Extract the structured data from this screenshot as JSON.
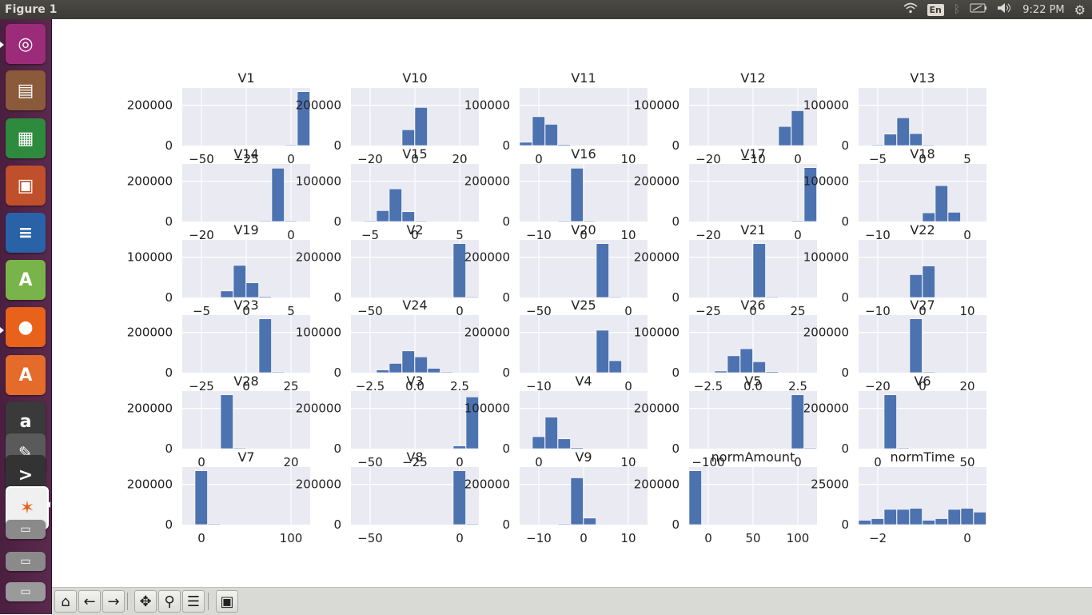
{
  "window": {
    "title": "Figure 1"
  },
  "tray": {
    "lang": "En",
    "time": "9:22 PM"
  },
  "launcher": {
    "items": [
      {
        "name": "ubuntu-dash",
        "color": "#9c2c7a",
        "glyph": "◎"
      },
      {
        "name": "files",
        "color": "#8a5a3a",
        "glyph": "▤"
      },
      {
        "name": "calc",
        "color": "#2e8b3e",
        "glyph": "▦"
      },
      {
        "name": "impress",
        "color": "#c0502b",
        "glyph": "▣"
      },
      {
        "name": "writer",
        "color": "#2a62a8",
        "glyph": "≡"
      },
      {
        "name": "android-studio",
        "color": "#79b44a",
        "glyph": "A"
      },
      {
        "name": "firefox",
        "color": "#e8621b",
        "glyph": "●"
      },
      {
        "name": "software-center",
        "color": "#e46b2a",
        "glyph": "A"
      },
      {
        "name": "amazon",
        "color": "#3a3a3a",
        "glyph": "a"
      },
      {
        "name": "text-editor",
        "color": "#5a5a5a",
        "glyph": "✎"
      },
      {
        "name": "terminal",
        "color": "#333333",
        "glyph": ">"
      },
      {
        "name": "matplotlib-figure",
        "color": "#f0f0f0",
        "glyph": "✶"
      },
      {
        "name": "workspace-1",
        "color": "#8a8a8a",
        "glyph": "▭"
      },
      {
        "name": "workspace-2",
        "color": "#8a8a8a",
        "glyph": "▭"
      },
      {
        "name": "trash",
        "color": "#9a9a9a",
        "glyph": "▭"
      }
    ]
  },
  "toolbar": {
    "buttons": [
      {
        "name": "home",
        "glyph": "⌂"
      },
      {
        "name": "back",
        "glyph": "←"
      },
      {
        "name": "forward",
        "glyph": "→"
      },
      {
        "name": "pan",
        "glyph": "✥"
      },
      {
        "name": "zoom",
        "glyph": "⚲"
      },
      {
        "name": "configure-subplots",
        "glyph": "☰"
      },
      {
        "name": "save",
        "glyph": "▣"
      }
    ]
  },
  "colors": {
    "bar": "#4c72b0",
    "axes_bg": "#eaeaf2",
    "grid": "#ffffff",
    "text": "#222222"
  },
  "chart_data": [
    {
      "type": "bar",
      "title": "V1",
      "yticks": [
        "0",
        "200000"
      ],
      "xticks": [
        "−50",
        "−25",
        "0"
      ],
      "values": [
        0,
        0,
        0,
        0,
        0,
        0,
        0,
        0,
        0.01,
        0.99
      ]
    },
    {
      "type": "bar",
      "title": "V10",
      "yticks": [
        "0",
        "200000"
      ],
      "xticks": [
        "−20",
        "0",
        "20"
      ],
      "values": [
        0,
        0,
        0,
        0,
        0.29,
        0.7,
        0,
        0,
        0,
        0
      ]
    },
    {
      "type": "bar",
      "title": "V11",
      "yticks": [
        "0",
        "100000"
      ],
      "xticks": [
        "0",
        "10"
      ],
      "values": [
        0.06,
        0.53,
        0.39,
        0.02,
        0,
        0,
        0,
        0,
        0,
        0
      ]
    },
    {
      "type": "bar",
      "title": "V12",
      "yticks": [
        "0",
        "100000"
      ],
      "xticks": [
        "−20",
        "−10",
        "0"
      ],
      "values": [
        0,
        0,
        0,
        0,
        0,
        0,
        0,
        0.35,
        0.64,
        0
      ]
    },
    {
      "type": "bar",
      "title": "V13",
      "yticks": [
        "0",
        "100000"
      ],
      "xticks": [
        "−5",
        "0",
        "5"
      ],
      "values": [
        0,
        0.01,
        0.21,
        0.51,
        0.22,
        0.01,
        0,
        0,
        0,
        0
      ]
    },
    {
      "type": "bar",
      "title": "V14",
      "yticks": [
        "0",
        "200000"
      ],
      "xticks": [
        "−20",
        "0"
      ],
      "values": [
        0,
        0,
        0,
        0,
        0,
        0,
        0.01,
        0.98,
        0.01,
        0
      ]
    },
    {
      "type": "bar",
      "title": "V15",
      "yticks": [
        "0",
        "100000"
      ],
      "xticks": [
        "−5",
        "0",
        "5"
      ],
      "values": [
        0,
        0.01,
        0.2,
        0.6,
        0.18,
        0.01,
        0,
        0,
        0,
        0
      ]
    },
    {
      "type": "bar",
      "title": "V16",
      "yticks": [
        "0",
        "200000"
      ],
      "xticks": [
        "−10",
        "0",
        "10"
      ],
      "values": [
        0,
        0,
        0,
        0.01,
        0.98,
        0.01,
        0,
        0,
        0,
        0
      ]
    },
    {
      "type": "bar",
      "title": "V17",
      "yticks": [
        "0",
        "200000"
      ],
      "xticks": [
        "−20",
        "0"
      ],
      "values": [
        0,
        0,
        0,
        0,
        0,
        0,
        0,
        0,
        0.01,
        0.99
      ]
    },
    {
      "type": "bar",
      "title": "V18",
      "yticks": [
        "0",
        "100000"
      ],
      "xticks": [
        "−10",
        "0"
      ],
      "values": [
        0,
        0,
        0,
        0,
        0,
        0.16,
        0.66,
        0.17,
        0,
        0
      ]
    },
    {
      "type": "bar",
      "title": "V19",
      "yticks": [
        "0",
        "100000"
      ],
      "xticks": [
        "−5",
        "0",
        "5"
      ],
      "values": [
        0,
        0,
        0,
        0.12,
        0.59,
        0.27,
        0.02,
        0,
        0,
        0
      ]
    },
    {
      "type": "bar",
      "title": "V2",
      "yticks": [
        "0",
        "200000"
      ],
      "xticks": [
        "−50",
        "0"
      ],
      "values": [
        0,
        0,
        0,
        0,
        0,
        0,
        0,
        0,
        0.99,
        0.01
      ]
    },
    {
      "type": "bar",
      "title": "V20",
      "yticks": [
        "0",
        "200000"
      ],
      "xticks": [
        "−50",
        "0"
      ],
      "values": [
        0,
        0,
        0,
        0,
        0,
        0,
        0.99,
        0.01,
        0,
        0
      ]
    },
    {
      "type": "bar",
      "title": "V21",
      "yticks": [
        "0",
        "200000"
      ],
      "xticks": [
        "−25",
        "0",
        "25"
      ],
      "values": [
        0,
        0,
        0,
        0,
        0,
        0.99,
        0.01,
        0,
        0,
        0
      ]
    },
    {
      "type": "bar",
      "title": "V22",
      "yticks": [
        "0",
        "100000"
      ],
      "xticks": [
        "−10",
        "0",
        "10"
      ],
      "values": [
        0,
        0,
        0,
        0,
        0.42,
        0.58,
        0,
        0,
        0,
        0
      ]
    },
    {
      "type": "bar",
      "title": "V23",
      "yticks": [
        "0",
        "200000"
      ],
      "xticks": [
        "−25",
        "0",
        "25"
      ],
      "values": [
        0,
        0,
        0,
        0,
        0,
        0,
        0.99,
        0.01,
        0,
        0
      ]
    },
    {
      "type": "bar",
      "title": "V24",
      "yticks": [
        "0",
        "100000"
      ],
      "xticks": [
        "−2.5",
        "0.0",
        "2.5"
      ],
      "values": [
        0,
        0,
        0.05,
        0.17,
        0.4,
        0.29,
        0.08,
        0.01,
        0,
        0
      ]
    },
    {
      "type": "bar",
      "title": "V25",
      "yticks": [
        "0",
        "200000"
      ],
      "xticks": [
        "−10",
        "0"
      ],
      "values": [
        0,
        0,
        0,
        0,
        0,
        0,
        0.78,
        0.22,
        0,
        0
      ]
    },
    {
      "type": "bar",
      "title": "V26",
      "yticks": [
        "0",
        "100000"
      ],
      "xticks": [
        "−2.5",
        "0.0",
        "2.5"
      ],
      "values": [
        0,
        0,
        0.03,
        0.31,
        0.44,
        0.2,
        0.02,
        0,
        0,
        0
      ]
    },
    {
      "type": "bar",
      "title": "V27",
      "yticks": [
        "0",
        "200000"
      ],
      "xticks": [
        "−20",
        "0",
        "20"
      ],
      "values": [
        0,
        0,
        0,
        0,
        0.99,
        0.01,
        0,
        0,
        0,
        0
      ]
    },
    {
      "type": "bar",
      "title": "V28",
      "yticks": [
        "0",
        "200000"
      ],
      "xticks": [
        "0",
        "20"
      ],
      "values": [
        0,
        0,
        0,
        0.99,
        0.01,
        0,
        0,
        0,
        0,
        0
      ]
    },
    {
      "type": "bar",
      "title": "V3",
      "yticks": [
        "0",
        "200000"
      ],
      "xticks": [
        "−50",
        "−25",
        "0"
      ],
      "values": [
        0,
        0,
        0,
        0,
        0,
        0,
        0,
        0,
        0.05,
        0.95
      ]
    },
    {
      "type": "bar",
      "title": "V4",
      "yticks": [
        "0",
        "100000"
      ],
      "xticks": [
        "0",
        "10"
      ],
      "values": [
        0,
        0.22,
        0.58,
        0.18,
        0.02,
        0,
        0,
        0,
        0,
        0
      ]
    },
    {
      "type": "bar",
      "title": "V5",
      "yticks": [
        "0",
        "200000"
      ],
      "xticks": [
        "−100",
        "0"
      ],
      "values": [
        0,
        0,
        0,
        0,
        0,
        0,
        0,
        0,
        0.99,
        0.01
      ]
    },
    {
      "type": "bar",
      "title": "V6",
      "yticks": [
        "0",
        "200000"
      ],
      "xticks": [
        "0",
        "50"
      ],
      "values": [
        0,
        0,
        0.99,
        0.01,
        0,
        0,
        0,
        0,
        0,
        0
      ]
    },
    {
      "type": "bar",
      "title": "V7",
      "yticks": [
        "0",
        "200000"
      ],
      "xticks": [
        "0",
        "100"
      ],
      "values": [
        0,
        0.99,
        0.01,
        0,
        0,
        0,
        0,
        0,
        0,
        0
      ]
    },
    {
      "type": "bar",
      "title": "V8",
      "yticks": [
        "0",
        "200000"
      ],
      "xticks": [
        "−50",
        "0"
      ],
      "values": [
        0,
        0,
        0,
        0,
        0,
        0,
        0,
        0,
        0.99,
        0.01
      ]
    },
    {
      "type": "bar",
      "title": "V9",
      "yticks": [
        "0",
        "200000"
      ],
      "xticks": [
        "−10",
        "0",
        "10"
      ],
      "values": [
        0,
        0,
        0,
        0.01,
        0.86,
        0.12,
        0,
        0,
        0,
        0
      ]
    },
    {
      "type": "bar",
      "title": "normAmount",
      "yticks": [
        "0",
        "200000"
      ],
      "xticks": [
        "0",
        "50",
        "100"
      ],
      "values": [
        0.99,
        0,
        0,
        0,
        0,
        0,
        0,
        0,
        0,
        0
      ]
    },
    {
      "type": "bar",
      "title": "normTime",
      "yticks": [
        "0",
        "25000"
      ],
      "xticks": [
        "−2",
        "0"
      ],
      "values": [
        0.08,
        0.11,
        0.28,
        0.28,
        0.3,
        0.08,
        0.11,
        0.28,
        0.3,
        0.23
      ]
    }
  ]
}
